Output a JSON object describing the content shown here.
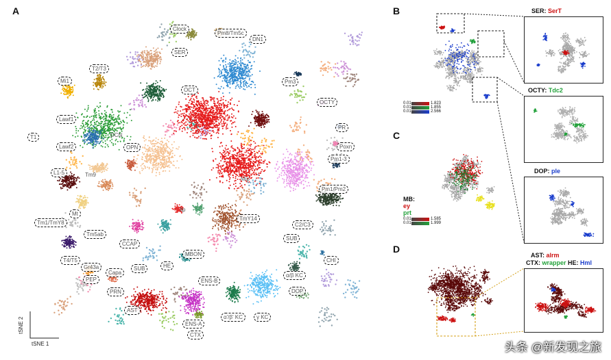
{
  "panels": {
    "a": "A",
    "b": "B",
    "c": "C",
    "d": "D"
  },
  "axes": {
    "y": "tSNE 2",
    "x": "tSNE 1"
  },
  "clusters": [
    {
      "id": "clock",
      "label": "Clock"
    },
    {
      "id": "pm8",
      "label": "Pm8/Tm5c"
    },
    {
      "id": "dn1",
      "label": "DN1"
    },
    {
      "id": "ser",
      "label": "SER"
    },
    {
      "id": "t2t3",
      "label": "T2/T3"
    },
    {
      "id": "mi1",
      "label": "Mi1"
    },
    {
      "id": "oct",
      "label": "OCT"
    },
    {
      "id": "pm3",
      "label": "Pm3"
    },
    {
      "id": "octy",
      "label": "OCTY"
    },
    {
      "id": "lawf1",
      "label": "Lawf1"
    },
    {
      "id": "t1",
      "label": "T1"
    },
    {
      "id": "lawf2",
      "label": "Lawf2"
    },
    {
      "id": "dcn",
      "label": "DCN"
    },
    {
      "id": "opn",
      "label": "OPN"
    },
    {
      "id": "pr",
      "label": "PR"
    },
    {
      "id": "poxn",
      "label": "Poxn"
    },
    {
      "id": "pm1_3",
      "label": "Pm1-3"
    },
    {
      "id": "l1_5",
      "label": "L1-5"
    },
    {
      "id": "tm9",
      "label": "Tm9"
    },
    {
      "id": "mip",
      "label": "Mip"
    },
    {
      "id": "pm1pm2",
      "label": "Pm1/Pm2"
    },
    {
      "id": "tm1tm8",
      "label": "Tm1/TmY8"
    },
    {
      "id": "mt",
      "label": "Mt"
    },
    {
      "id": "ilp",
      "label": "Ilp"
    },
    {
      "id": "tmy14",
      "label": "TmY14"
    },
    {
      "id": "c2c3",
      "label": "C2/C3"
    },
    {
      "id": "tm5ab",
      "label": "Tm5ab"
    },
    {
      "id": "ccap",
      "label": "CCAP"
    },
    {
      "id": "sub1",
      "label": "SUB"
    },
    {
      "id": "t4t5",
      "label": "T4/T5"
    },
    {
      "id": "gr",
      "label": "Gr43a"
    },
    {
      "id": "chi",
      "label": "CHI"
    },
    {
      "id": "mbon",
      "label": "MBON"
    },
    {
      "id": "sub2",
      "label": "SUB"
    },
    {
      "id": "he",
      "label": "HE"
    },
    {
      "id": "ab_kc",
      "label": "α/β KC"
    },
    {
      "id": "pep",
      "label": "PEP"
    },
    {
      "id": "capa",
      "label": "Capa"
    },
    {
      "id": "ens_b",
      "label": "ENS-B"
    },
    {
      "id": "prn",
      "label": "PRN"
    },
    {
      "id": "dop",
      "label": "DOP"
    },
    {
      "id": "ast",
      "label": "AST"
    },
    {
      "id": "aprime_kc",
      "label": "α'/β' KC"
    },
    {
      "id": "ens_a",
      "label": "ENS-A"
    },
    {
      "id": "g_kc",
      "label": "γ KC"
    },
    {
      "id": "ctx",
      "label": "CTX"
    }
  ],
  "inset_ser": {
    "name": "SER: ",
    "gene": "SerT",
    "gene_color": "#cc1111"
  },
  "inset_octy": {
    "name": "OCTY: ",
    "gene": "Tdc2",
    "gene_color": "#22a13a"
  },
  "inset_dop": {
    "name": "DOP: ",
    "gene": "ple",
    "gene_color": "#1a3dcc"
  },
  "inset_d": {
    "a_name": "AST: ",
    "a_gene": "alrm",
    "a_color": "#cc1111",
    "b_name": "CTX: ",
    "b_gene": "wrapper",
    "b_color": "#22a13a",
    "c_name": "HE: ",
    "c_gene": "Hml",
    "c_color": "#1a3dcc"
  },
  "legend_b": {
    "min": "0.01",
    "rows": [
      {
        "max": "1.823",
        "color": "#cc1111"
      },
      {
        "max": "1.855",
        "color": "#22a13a"
      },
      {
        "max": "2.566",
        "color": "#1a3dcc"
      }
    ]
  },
  "legend_c": {
    "title": "MB:",
    "genes": [
      {
        "name": "ey",
        "color": "#cc1111"
      },
      {
        "name": "prt",
        "color": "#22a13a"
      }
    ],
    "min": "0.01",
    "rows": [
      {
        "max": "1.585",
        "color": "#cc1111"
      },
      {
        "max": "1.999",
        "color": "#22a13a"
      }
    ]
  },
  "watermark": "头条 @新发现之旅"
}
